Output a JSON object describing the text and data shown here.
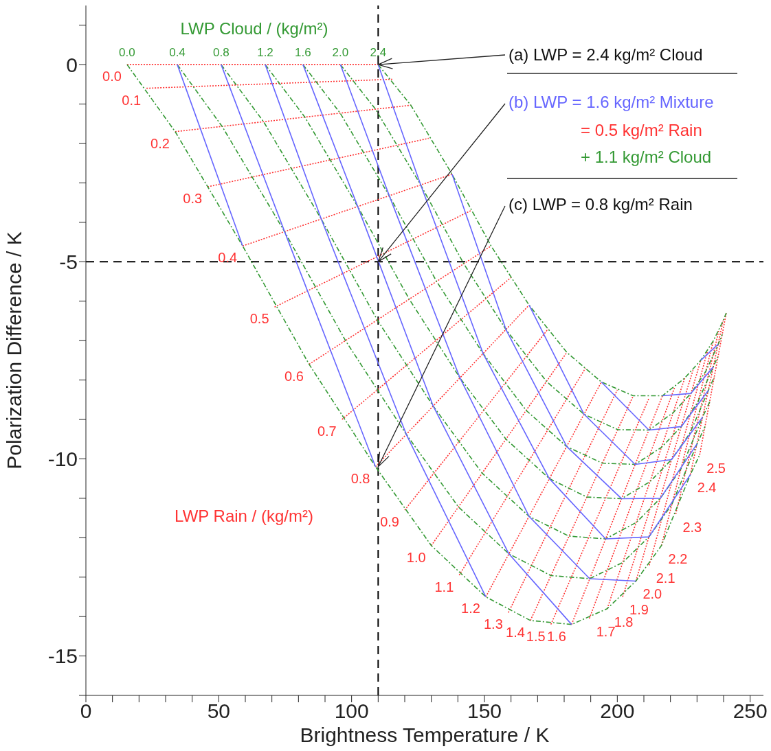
{
  "chart_data": {
    "type": "line",
    "xlabel": "Brightness Temperature / K",
    "ylabel": "Polarization Difference / K",
    "marker": "none",
    "legend": false,
    "xlim": [
      0,
      255
    ],
    "ylim": [
      -16,
      1.5
    ],
    "xticks": [
      0,
      {
        "value": 10,
        "label": null
      },
      {
        "value": 20,
        "label": null
      },
      {
        "value": 30,
        "label": null
      },
      {
        "value": 40,
        "label": null
      },
      50,
      {
        "value": 60,
        "label": null
      },
      {
        "value": 70,
        "label": null
      },
      {
        "value": 80,
        "label": null
      },
      {
        "value": 90,
        "label": null
      },
      100,
      {
        "value": 110,
        "label": null
      },
      {
        "value": 120,
        "label": null
      },
      {
        "value": 130,
        "label": null
      },
      {
        "value": 140,
        "label": null
      },
      150,
      {
        "value": 160,
        "label": null
      },
      {
        "value": 170,
        "label": null
      },
      {
        "value": 180,
        "label": null
      },
      {
        "value": 190,
        "label": null
      },
      200,
      {
        "value": 210,
        "label": null
      },
      {
        "value": 220,
        "label": null
      },
      {
        "value": 230,
        "label": null
      },
      {
        "value": 240,
        "label": null
      },
      250
    ],
    "yticks": [
      -15,
      {
        "value": -16,
        "label": null
      },
      {
        "value": -14,
        "label": null
      },
      {
        "value": -13,
        "label": null
      },
      {
        "value": -12,
        "label": null
      },
      {
        "value": -11,
        "label": null
      },
      -10,
      {
        "value": -9,
        "label": null
      },
      {
        "value": -8,
        "label": null
      },
      {
        "value": -7,
        "label": null
      },
      {
        "value": -6,
        "label": null
      },
      -5,
      {
        "value": -4,
        "label": null
      },
      {
        "value": -3,
        "label": null
      },
      {
        "value": -2,
        "label": null
      },
      {
        "value": -1,
        "label": null
      },
      0,
      {
        "value": 1,
        "label": null
      }
    ],
    "ref_lines": [
      {
        "axis": "x",
        "value": 110,
        "color": "#000000",
        "line_style": "dashed"
      },
      {
        "axis": "y",
        "value": -5,
        "color": "#000000",
        "line_style": "dashed"
      }
    ],
    "series": [
      {
        "type": "line",
        "color": "#ff3333",
        "line_style": "dotted",
        "x": [
          15.5,
          110
        ],
        "values": [
          0,
          0
        ]
      },
      {
        "type": "line",
        "color": "#ff3333",
        "line_style": "dotted",
        "x": [
          22.8,
          115.8
        ],
        "values": [
          -0.6,
          -0.37
        ]
      },
      {
        "type": "line",
        "color": "#ff3333",
        "line_style": "dotted",
        "x": [
          33.6,
          122.3
        ],
        "values": [
          -1.7,
          -1.03
        ]
      },
      {
        "type": "line",
        "color": "#ff3333",
        "line_style": "dotted",
        "x": [
          45.8,
          129
        ],
        "values": [
          -3.1,
          -1.87
        ]
      },
      {
        "type": "line",
        "color": "#ff3333",
        "line_style": "dotted",
        "x": [
          59,
          137.8
        ],
        "values": [
          -4.6,
          -2.78
        ]
      },
      {
        "type": "line",
        "color": "#ff3333",
        "line_style": "dotted",
        "x": [
          71,
          145
        ],
        "values": [
          -6.15,
          -3.7
        ]
      },
      {
        "type": "line",
        "color": "#ff3333",
        "line_style": "dotted",
        "x": [
          84,
          152.5
        ],
        "values": [
          -7.6,
          -4.6
        ]
      },
      {
        "type": "line",
        "color": "#ff3333",
        "line_style": "dotted",
        "x": [
          96.4,
          160
        ],
        "values": [
          -9,
          -5.4
        ]
      },
      {
        "type": "line",
        "color": "#ff3333",
        "line_style": "dotted",
        "x": [
          109,
          166.8
        ],
        "values": [
          -10.2,
          -6.1
        ]
      },
      {
        "type": "line",
        "color": "#ff3333",
        "line_style": "dotted",
        "x": [
          120,
          174
        ],
        "values": [
          -11.3,
          -6.7
        ]
      },
      {
        "type": "line",
        "color": "#ff3333",
        "line_style": "dotted",
        "x": [
          130,
          181
        ],
        "values": [
          -12.2,
          -7.3
        ]
      },
      {
        "type": "line",
        "color": "#ff3333",
        "line_style": "dotted",
        "x": [
          140.5,
          188
        ],
        "values": [
          -12.95,
          -7.7
        ]
      },
      {
        "type": "line",
        "color": "#ff3333",
        "line_style": "dotted",
        "x": [
          150.5,
          194
        ],
        "values": [
          -13.5,
          -8.05
        ]
      },
      {
        "type": "line",
        "color": "#ff3333",
        "line_style": "dotted",
        "x": [
          159,
          200
        ],
        "values": [
          -13.9,
          -8.25
        ]
      },
      {
        "type": "line",
        "color": "#ff3333",
        "line_style": "dotted",
        "x": [
          167.3,
          206
        ],
        "values": [
          -14.1,
          -8.4
        ]
      },
      {
        "type": "line",
        "color": "#ff3333",
        "line_style": "dotted",
        "x": [
          175,
          212
        ],
        "values": [
          -14.2,
          -8.45
        ]
      },
      {
        "type": "line",
        "color": "#ff3333",
        "line_style": "dotted",
        "x": [
          182.8,
          217
        ],
        "values": [
          -14.2,
          -8.4
        ]
      },
      {
        "type": "line",
        "color": "#ff3333",
        "line_style": "dotted",
        "x": [
          189.5,
          221.5
        ],
        "values": [
          -14.05,
          -8.2
        ]
      },
      {
        "type": "line",
        "color": "#ff3333",
        "line_style": "dotted",
        "x": [
          196.2,
          225.4
        ],
        "values": [
          -13.8,
          -7.95
        ]
      },
      {
        "type": "line",
        "color": "#ff3333",
        "line_style": "dotted",
        "x": [
          202,
          228.5
        ],
        "values": [
          -13.5,
          -7.75
        ]
      },
      {
        "type": "line",
        "color": "#ff3333",
        "line_style": "dotted",
        "x": [
          207,
          231.4
        ],
        "values": [
          -13.1,
          -7.5
        ]
      },
      {
        "type": "line",
        "color": "#ff3333",
        "line_style": "dotted",
        "x": [
          212,
          234
        ],
        "values": [
          -12.7,
          -7.25
        ]
      },
      {
        "type": "line",
        "color": "#ff3333",
        "line_style": "dotted",
        "x": [
          216.6,
          236.2
        ],
        "values": [
          -12.2,
          -7.0
        ]
      },
      {
        "type": "line",
        "color": "#ff3333",
        "line_style": "dotted",
        "x": [
          222,
          238.2
        ],
        "values": [
          -11.4,
          -6.75
        ]
      },
      {
        "type": "line",
        "color": "#ff3333",
        "line_style": "dotted",
        "x": [
          227.5,
          239.8
        ],
        "values": [
          -10.4,
          -6.5
        ]
      },
      {
        "type": "line",
        "color": "#ff3333",
        "line_style": "dotted",
        "x": [
          231,
          241
        ],
        "values": [
          -9.9,
          -6.3
        ]
      },
      {
        "type": "line",
        "color": "#339933",
        "line_style": "dashed",
        "x": [
          15.5,
          33.6,
          59,
          84,
          109,
          130,
          150.5,
          167.3,
          182.8,
          196.2,
          207,
          216.6,
          227.5,
          231
        ],
        "values": [
          0,
          -1.7,
          -4.6,
          -7.6,
          -10.2,
          -12.2,
          -13.5,
          -14.1,
          -14.2,
          -13.8,
          -13.1,
          -12.2,
          -10.4,
          -9.9
        ]
      },
      {
        "type": "line",
        "color": "#339933",
        "line_style": "dashed",
        "x": [
          34.4,
          51.3,
          74.8,
          97.7,
          120.6,
          140.2,
          159.2,
          175,
          189.6,
          202,
          211.9,
          220.5,
          230,
          233
        ],
        "values": [
          0,
          -1.57,
          -4.24,
          -7.0,
          -9.38,
          -11.22,
          -12.41,
          -12.96,
          -13.04,
          -12.63,
          -11.98,
          -11.16,
          -9.62,
          -9.18
        ]
      },
      {
        "type": "line",
        "color": "#339933",
        "line_style": "dashed",
        "x": [
          50.9,
          66.9,
          88.6,
          109.7,
          130.7,
          149.1,
          166.8,
          181.8,
          195.6,
          207.2,
          216.2,
          224,
          232.1,
          234.8
        ],
        "values": [
          0,
          -1.45,
          -3.92,
          -6.48,
          -8.66,
          -10.36,
          -11.46,
          -11.96,
          -12.03,
          -11.61,
          -11.0,
          -10.25,
          -8.94,
          -8.55
        ]
      },
      {
        "type": "line",
        "color": "#339933",
        "line_style": "dashed",
        "x": [
          67.5,
          82.4,
          102.3,
          121.7,
          140.8,
          158.1,
          174.4,
          188.6,
          201.6,
          212.3,
          220.4,
          227.4,
          234.3,
          236.5
        ],
        "values": [
          0,
          -1.33,
          -3.6,
          -5.95,
          -7.95,
          -9.5,
          -10.5,
          -10.97,
          -11.01,
          -10.58,
          -10.02,
          -9.34,
          -8.26,
          -7.92
        ]
      },
      {
        "type": "line",
        "color": "#339933",
        "line_style": "dashed",
        "x": [
          81.7,
          95.7,
          114.2,
          132,
          149.5,
          165.7,
          181,
          194.4,
          206.7,
          216.6,
          224.1,
          230.3,
          236.1,
          238
        ],
        "values": [
          0,
          -1.23,
          -3.33,
          -5.5,
          -7.33,
          -8.77,
          -9.69,
          -10.11,
          -10.14,
          -9.71,
          -9.18,
          -8.56,
          -7.67,
          -7.38
        ]
      },
      {
        "type": "line",
        "color": "#339933",
        "line_style": "dashed",
        "x": [
          95.8,
          109,
          126,
          142.2,
          158.1,
          173.4,
          187.5,
          200.2,
          211.9,
          221,
          227.7,
          233.3,
          238,
          239.5
        ],
        "values": [
          0,
          -1.13,
          -3.05,
          -5.05,
          -6.72,
          -8.04,
          -8.87,
          -9.26,
          -9.27,
          -8.83,
          -8.34,
          -7.78,
          -7.09,
          -6.84
        ]
      },
      {
        "type": "line",
        "color": "#339933",
        "line_style": "dashed",
        "x": [
          110,
          122.3,
          137.8,
          152.5,
          166.8,
          181,
          194,
          206,
          217,
          225.4,
          231.4,
          236.2,
          239.8,
          241
        ],
        "values": [
          0,
          -1.03,
          -2.78,
          -4.6,
          -6.1,
          -7.3,
          -8.05,
          -8.4,
          -8.4,
          -7.95,
          -7.5,
          -7.0,
          -6.5,
          -6.3
        ]
      },
      {
        "type": "line",
        "color": "#6666ff",
        "line_style": "solid",
        "x": [
          34.4,
          59
        ],
        "values": [
          0,
          -4.6
        ]
      },
      {
        "type": "line",
        "color": "#6666ff",
        "line_style": "solid",
        "x": [
          50.9,
          74.8,
          109
        ],
        "values": [
          0,
          -4.24,
          -10.2
        ]
      },
      {
        "type": "line",
        "color": "#6666ff",
        "line_style": "solid",
        "x": [
          67.5,
          88.6,
          120.6,
          150.5
        ],
        "values": [
          0,
          -3.92,
          -9.38,
          -13.5
        ]
      },
      {
        "type": "line",
        "color": "#6666ff",
        "line_style": "solid",
        "x": [
          81.7,
          102.3,
          130.7,
          159.2,
          182.8
        ],
        "values": [
          0,
          -3.6,
          -8.66,
          -12.41,
          -14.2
        ]
      },
      {
        "type": "line",
        "color": "#6666ff",
        "line_style": "solid",
        "x": [
          95.8,
          114.2,
          140.8,
          166.8,
          189.6,
          207
        ],
        "values": [
          0,
          -3.33,
          -7.95,
          -11.46,
          -13.04,
          -13.1
        ]
      },
      {
        "type": "line",
        "color": "#6666ff",
        "line_style": "solid",
        "x": [
          110,
          126,
          149.5,
          174.4,
          195.6,
          211.9,
          227.5
        ],
        "values": [
          0,
          -3.05,
          -7.33,
          -10.5,
          -12.03,
          -11.98,
          -10.4
        ]
      },
      {
        "type": "line",
        "color": "#6666ff",
        "line_style": "solid",
        "x": [
          137.8,
          158.1,
          181,
          201.6,
          216.2,
          230
        ],
        "values": [
          -2.78,
          -6.72,
          -9.69,
          -11.01,
          -11.0,
          -9.62
        ]
      },
      {
        "type": "line",
        "color": "#6666ff",
        "line_style": "solid",
        "x": [
          166.8,
          187.5,
          206.7,
          220.4,
          232.1
        ],
        "values": [
          -6.1,
          -8.87,
          -10.14,
          -10.02,
          -8.94
        ]
      },
      {
        "type": "line",
        "color": "#6666ff",
        "line_style": "solid",
        "x": [
          194,
          211.9,
          224.1,
          234.3
        ],
        "values": [
          -8.05,
          -9.27,
          -9.18,
          -8.26
        ]
      },
      {
        "type": "line",
        "color": "#6666ff",
        "line_style": "solid",
        "x": [
          217,
          227.7,
          236.1
        ],
        "values": [
          -8.4,
          -8.34,
          -7.67
        ]
      },
      {
        "type": "line",
        "color": "#6666ff",
        "line_style": "solid",
        "x": [
          231.4,
          238
        ],
        "values": [
          -7.5,
          -7.09
        ]
      }
    ],
    "annotations": [
      "LWP Cloud / (kg/m²)",
      "LWP Rain / (kg/m²)",
      {
        "text": "(a) LWP = 2.4 kg/m² Cloud",
        "x": 110,
        "y": 0
      },
      {
        "text": "(b) LWP = 1.6 kg/m² Mixture",
        "x": 110,
        "y": -5
      },
      "= 0.5 kg/m² Rain",
      "+ 1.1 kg/m² Cloud",
      {
        "text": "(c) LWP = 0.8 kg/m² Rain",
        "x": 110,
        "y": -10.2
      },
      {
        "text": "0.0",
        "x": 15.5,
        "y": 0
      },
      {
        "text": "0.1",
        "x": 22.8,
        "y": -0.6
      },
      {
        "text": "0.2",
        "x": 33.6,
        "y": -1.7
      },
      {
        "text": "0.3",
        "x": 45.8,
        "y": -3.1
      },
      {
        "text": "0.4",
        "x": 59,
        "y": -4.6
      },
      {
        "text": "0.5",
        "x": 71,
        "y": -6.15
      },
      {
        "text": "0.6",
        "x": 84,
        "y": -7.6
      },
      {
        "text": "0.7",
        "x": 96.4,
        "y": -9
      },
      {
        "text": "0.8",
        "x": 109,
        "y": -10.2
      },
      {
        "text": "0.9",
        "x": 120,
        "y": -11.3
      },
      {
        "text": "1.0",
        "x": 130,
        "y": -12.2
      },
      {
        "text": "1.1",
        "x": 140.5,
        "y": -12.95
      },
      {
        "text": "1.2",
        "x": 150.5,
        "y": -13.5
      },
      {
        "text": "1.3",
        "x": 159,
        "y": -13.9
      },
      {
        "text": "1.4",
        "x": 167.3,
        "y": -14.1
      },
      {
        "text": "1.5",
        "x": 175,
        "y": -14.2
      },
      {
        "text": "1.6",
        "x": 182.8,
        "y": -14.2
      },
      {
        "text": "1.7",
        "x": 189.5,
        "y": -14.05
      },
      {
        "text": "1.8",
        "x": 196.2,
        "y": -13.8
      },
      {
        "text": "1.9",
        "x": 202,
        "y": -13.5
      },
      {
        "text": "2.0",
        "x": 207,
        "y": -13.1
      },
      {
        "text": "2.1",
        "x": 212,
        "y": -12.7
      },
      {
        "text": "2.2",
        "x": 216.6,
        "y": -12.2
      },
      {
        "text": "2.3",
        "x": 222,
        "y": -11.4
      },
      {
        "text": "2.4",
        "x": 227.5,
        "y": -10.4
      },
      {
        "text": "2.5",
        "x": 231,
        "y": -9.9
      },
      {
        "text": "0.0",
        "x": 15.5,
        "y": 0
      },
      {
        "text": "0.4",
        "x": 34.4,
        "y": 0
      },
      {
        "text": "0.8",
        "x": 50.9,
        "y": 0
      },
      {
        "text": "1.2",
        "x": 67.5,
        "y": 0
      },
      {
        "text": "1.6",
        "x": 81.7,
        "y": 0
      },
      {
        "text": "2.0",
        "x": 95.8,
        "y": 0
      },
      {
        "text": "2.4",
        "x": 110,
        "y": 0
      }
    ]
  }
}
